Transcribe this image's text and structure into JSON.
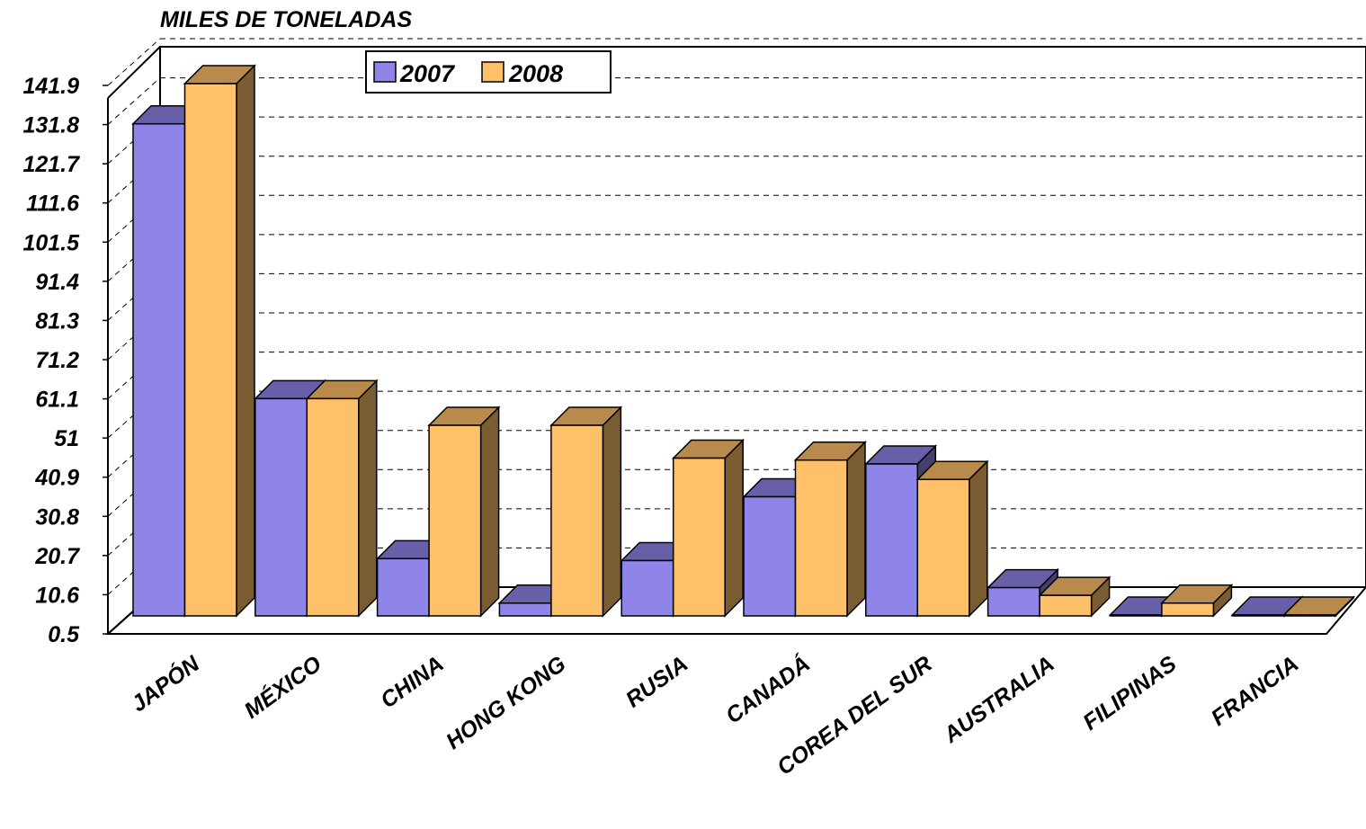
{
  "chart_data": {
    "type": "bar",
    "title": "MILES DE TONELADAS",
    "categories": [
      "JAPÓN",
      "MÉXICO",
      "CHINA",
      "HONG KONG",
      "RUSIA",
      "CANADÁ",
      "COREA DEL SUR",
      "AUSTRALIA",
      "FILIPINAS",
      "FRANCIA"
    ],
    "series": [
      {
        "name": "2007",
        "color": "#8F84E8",
        "values": [
          131.5,
          60.4,
          19.0,
          7.5,
          18.5,
          35.0,
          43.5,
          11.5,
          0.8,
          0.3
        ]
      },
      {
        "name": "2008",
        "color": "#FFC06A",
        "values": [
          141.9,
          60.4,
          53.5,
          53.5,
          45.0,
          44.5,
          39.5,
          9.5,
          7.5,
          3.5
        ]
      }
    ],
    "yticks": [
      "0.5",
      "10.6",
      "20.7",
      "30.8",
      "40.9",
      "51",
      "61.1",
      "71.2",
      "81.3",
      "91.4",
      "101.5",
      "111.6",
      "121.7",
      "131.8",
      "141.9"
    ],
    "ylim": [
      0,
      141.9
    ],
    "grid": true,
    "legend_position": "top-center"
  }
}
